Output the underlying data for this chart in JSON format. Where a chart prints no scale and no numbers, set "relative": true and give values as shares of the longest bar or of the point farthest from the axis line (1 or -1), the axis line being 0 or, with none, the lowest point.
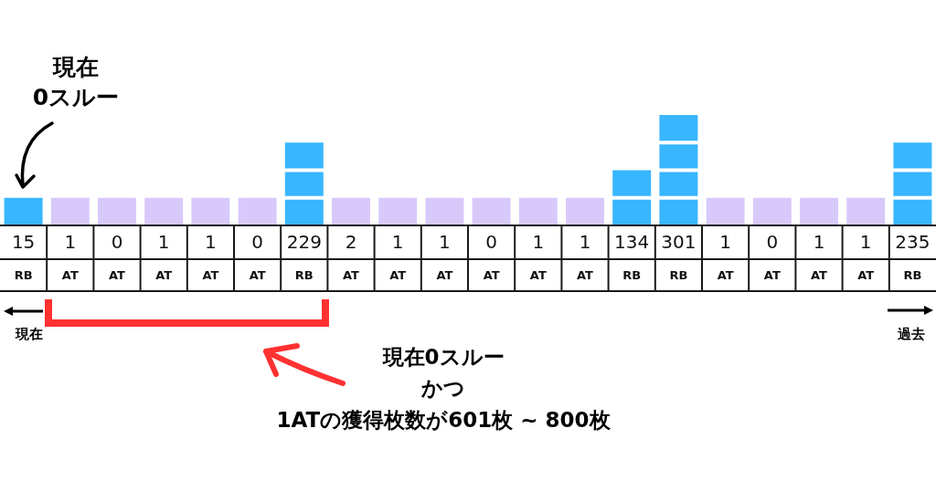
{
  "chart_data": {
    "type": "bar",
    "stacked": true,
    "relative": true,
    "categories": [
      "15\nRB",
      "1\nAT",
      "0\nAT",
      "1\nAT",
      "1\nAT",
      "0\nAT",
      "229\nRB",
      "2\nAT",
      "1\nAT",
      "1\nAT",
      "0\nAT",
      "1\nAT",
      "1\nAT",
      "134\nRB",
      "301\nRB",
      "1\nAT",
      "0\nAT",
      "1\nAT",
      "1\nAT",
      "235\nRB"
    ],
    "series": [
      {
        "colors": [
          "#38b6ff",
          "#d8c9fb",
          "#d8c9fb",
          "#d8c9fb",
          "#d8c9fb",
          "#d8c9fb",
          "#38b6ff",
          "#d8c9fb",
          "#d8c9fb",
          "#d8c9fb",
          "#d8c9fb",
          "#d8c9fb",
          "#d8c9fb",
          "#38b6ff",
          "#38b6ff",
          "#d8c9fb",
          "#d8c9fb",
          "#d8c9fb",
          "#d8c9fb",
          "#38b6ff"
        ],
        "values": [
          0.25,
          0.25,
          0.25,
          0.25,
          0.25,
          0.25,
          0.25,
          0.25,
          0.25,
          0.25,
          0.25,
          0.25,
          0.25,
          0.25,
          0.25,
          0.25,
          0.25,
          0.25,
          0.25,
          0.25
        ]
      },
      {
        "color": "#38b6ff",
        "values": [
          null,
          null,
          null,
          null,
          null,
          null,
          0.25,
          null,
          null,
          null,
          null,
          null,
          null,
          0.25,
          0.25,
          null,
          null,
          null,
          null,
          0.25
        ]
      },
      {
        "color": "#38b6ff",
        "values": [
          null,
          null,
          null,
          null,
          null,
          null,
          0.25,
          null,
          null,
          null,
          null,
          null,
          null,
          null,
          0.25,
          null,
          null,
          null,
          null,
          0.25
        ]
      },
      {
        "color": "#38b6ff",
        "values": [
          null,
          null,
          null,
          null,
          null,
          null,
          null,
          null,
          null,
          null,
          null,
          null,
          null,
          null,
          0.25,
          null,
          null,
          null,
          null,
          null
        ]
      }
    ],
    "annotations": [
      "現在\n0スルー",
      "現在",
      "過去",
      "現在0スルー",
      "かつ",
      "1ATの獲得枚数が601枚 ~ 800枚"
    ]
  }
}
